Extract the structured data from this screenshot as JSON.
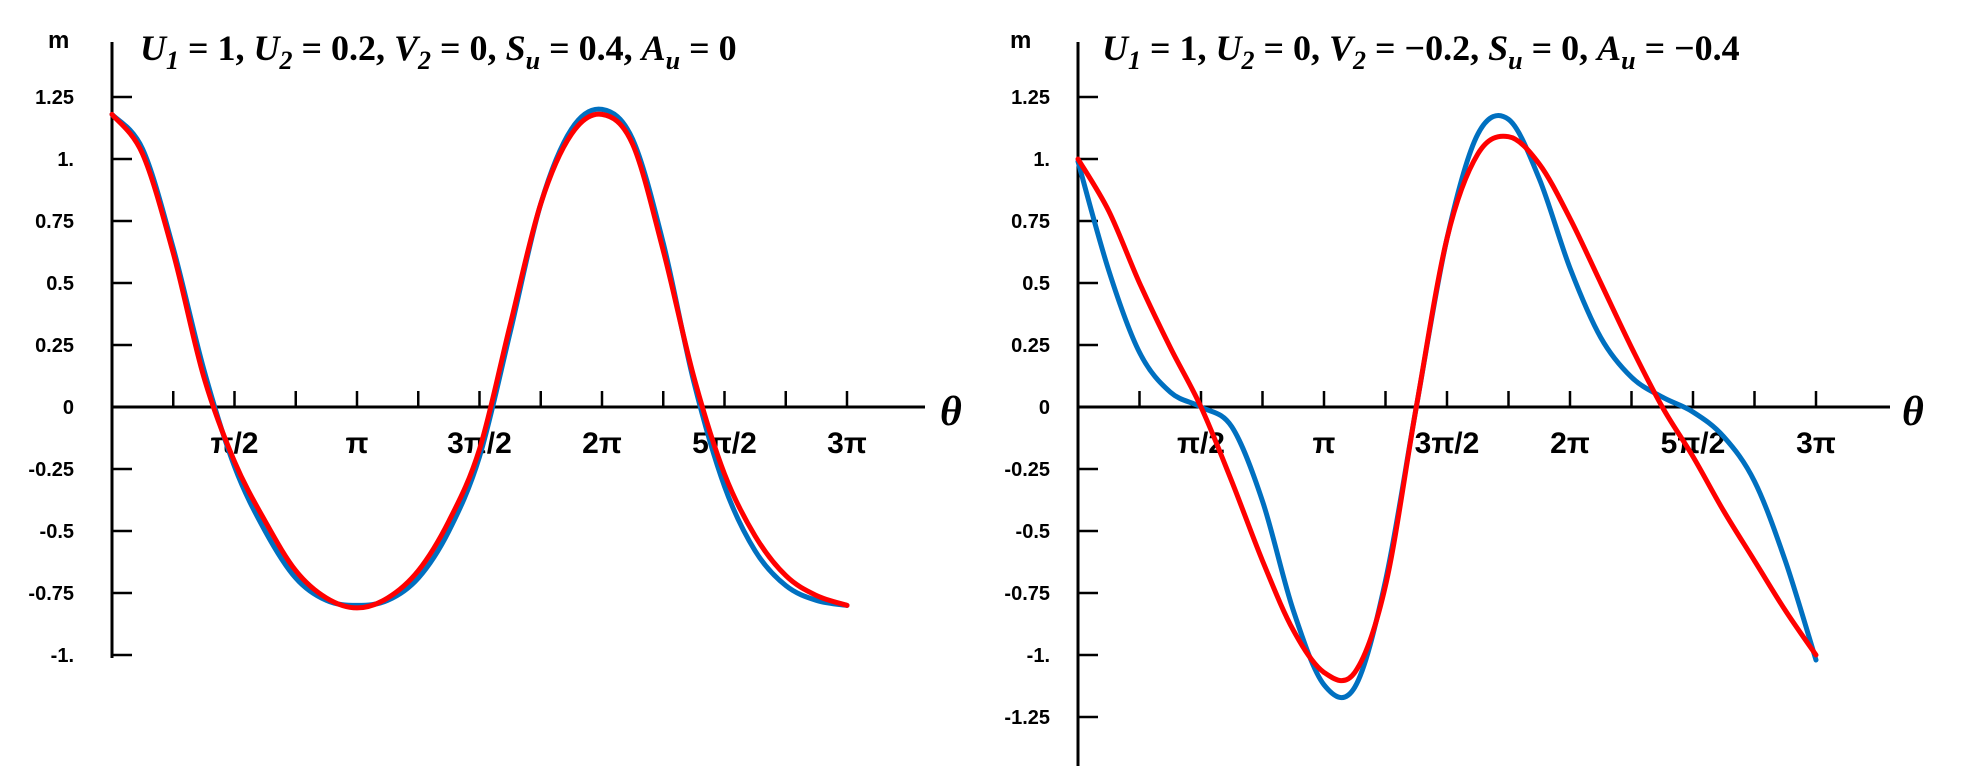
{
  "chart_data": [
    {
      "type": "line",
      "title": "U1 = 1,  U2 = 0.2,  V2 = 0,  Su = 0.4,  Au = 0",
      "title_parts": [
        {
          "base": "U",
          "sub": "1",
          "rest": " = 1,  "
        },
        {
          "base": "U",
          "sub": "2",
          "rest": " = 0.2,  "
        },
        {
          "base": "V",
          "sub": "2",
          "rest": " = 0,  "
        },
        {
          "base": "S",
          "sub": "u",
          "rest": " = 0.4,  "
        },
        {
          "base": "A",
          "sub": "u",
          "rest": " = 0"
        }
      ],
      "ylabel": "m",
      "xlabel": "θ",
      "xlim_pi": [
        0,
        3
      ],
      "ylim": [
        -1,
        1.25
      ],
      "y_ticks": [
        1.25,
        1.0,
        0.75,
        0.5,
        0.25,
        0,
        -0.25,
        -0.5,
        -0.75,
        -1.0
      ],
      "y_tick_labels": [
        "1.25",
        "1.",
        "0.75",
        "0.5",
        "0.25",
        "0",
        "-0.25",
        "-0.5",
        "-0.75",
        "-1."
      ],
      "x_ticks_pi": [
        0.25,
        0.5,
        0.75,
        1.0,
        1.25,
        1.5,
        1.75,
        2.0,
        2.25,
        2.5,
        2.75,
        3.0
      ],
      "x_label_ticks_pi": [
        0.5,
        1.0,
        1.5,
        2.0,
        2.5,
        3.0
      ],
      "x_tick_labels": [
        "π/2",
        "π",
        "3π/2",
        "2π",
        "5π/2",
        "3π"
      ],
      "series": [
        {
          "color": "#0070C0",
          "x_pi": [
            0,
            0.125,
            0.25,
            0.375,
            0.5,
            0.625,
            0.75,
            0.875,
            1.0,
            1.125,
            1.25,
            1.375,
            1.5,
            1.625,
            1.75,
            1.875,
            2.0,
            2.125,
            2.25,
            2.375,
            2.5,
            2.625,
            2.75,
            2.875,
            3.0
          ],
          "y": [
            1.18,
            1.04,
            0.64,
            0.15,
            -0.24,
            -0.5,
            -0.69,
            -0.78,
            -0.8,
            -0.78,
            -0.69,
            -0.5,
            -0.2,
            0.3,
            0.82,
            1.12,
            1.2,
            1.08,
            0.66,
            0.1,
            -0.32,
            -0.58,
            -0.72,
            -0.78,
            -0.8
          ]
        },
        {
          "color": "#FF0000",
          "x_pi": [
            0,
            0.125,
            0.25,
            0.375,
            0.5,
            0.625,
            0.75,
            0.875,
            1.0,
            1.125,
            1.25,
            1.375,
            1.5,
            1.625,
            1.75,
            1.875,
            2.0,
            2.125,
            2.25,
            2.375,
            2.5,
            2.625,
            2.75,
            2.875,
            3.0
          ],
          "y": [
            1.18,
            1.02,
            0.62,
            0.12,
            -0.22,
            -0.46,
            -0.66,
            -0.77,
            -0.81,
            -0.77,
            -0.66,
            -0.46,
            -0.17,
            0.33,
            0.82,
            1.1,
            1.18,
            1.06,
            0.63,
            0.12,
            -0.27,
            -0.52,
            -0.68,
            -0.76,
            -0.8
          ]
        }
      ]
    },
    {
      "type": "line",
      "title": "U1 = 1,  U2 = 0,  V2 = −0.2,  Su = 0,  Au = −0.4",
      "title_parts": [
        {
          "base": "U",
          "sub": "1",
          "rest": " = 1,  "
        },
        {
          "base": "U",
          "sub": "2",
          "rest": " = 0,  "
        },
        {
          "base": "V",
          "sub": "2",
          "rest": " = −0.2,  "
        },
        {
          "base": "S",
          "sub": "u",
          "rest": " = 0,  "
        },
        {
          "base": "A",
          "sub": "u",
          "rest": " = −0.4"
        }
      ],
      "ylabel": "m",
      "xlabel": "θ",
      "xlim_pi": [
        0,
        3
      ],
      "ylim": [
        -1.25,
        1.25
      ],
      "y_ticks": [
        1.25,
        1.0,
        0.75,
        0.5,
        0.25,
        0,
        -0.25,
        -0.5,
        -0.75,
        -1.0,
        -1.25
      ],
      "y_tick_labels": [
        "1.25",
        "1.",
        "0.75",
        "0.5",
        "0.25",
        "0",
        "-0.25",
        "-0.5",
        "-0.75",
        "-1.",
        "-1.25"
      ],
      "x_ticks_pi": [
        0.25,
        0.5,
        0.75,
        1.0,
        1.25,
        1.5,
        1.75,
        2.0,
        2.25,
        2.5,
        2.75,
        3.0
      ],
      "x_label_ticks_pi": [
        0.5,
        1.0,
        1.5,
        2.0,
        2.5,
        3.0
      ],
      "x_tick_labels": [
        "π/2",
        "π",
        "3π/2",
        "2π",
        "5π/2",
        "3π"
      ],
      "series": [
        {
          "color": "#0070C0",
          "x_pi": [
            0,
            0.125,
            0.25,
            0.375,
            0.5,
            0.625,
            0.75,
            0.875,
            1.0,
            1.125,
            1.25,
            1.375,
            1.5,
            1.625,
            1.75,
            1.875,
            2.0,
            2.125,
            2.25,
            2.375,
            2.5,
            2.625,
            2.75,
            2.875,
            3.0
          ],
          "y": [
            0.99,
            0.55,
            0.22,
            0.06,
            0.0,
            -0.08,
            -0.38,
            -0.82,
            -1.12,
            -1.13,
            -0.7,
            0.0,
            0.68,
            1.1,
            1.16,
            0.92,
            0.56,
            0.28,
            0.12,
            0.04,
            -0.02,
            -0.12,
            -0.3,
            -0.62,
            -1.02
          ]
        },
        {
          "color": "#FF0000",
          "x_pi": [
            0,
            0.125,
            0.25,
            0.375,
            0.5,
            0.625,
            0.75,
            0.875,
            1.0,
            1.125,
            1.25,
            1.375,
            1.5,
            1.625,
            1.75,
            1.875,
            2.0,
            2.125,
            2.25,
            2.375,
            2.5,
            2.625,
            2.75,
            2.875,
            3.0
          ],
          "y": [
            1.0,
            0.79,
            0.5,
            0.24,
            0.0,
            -0.3,
            -0.62,
            -0.9,
            -1.07,
            -1.07,
            -0.72,
            0.0,
            0.68,
            1.02,
            1.09,
            0.98,
            0.76,
            0.5,
            0.24,
            0.0,
            -0.2,
            -0.42,
            -0.62,
            -0.82,
            -1.0
          ]
        }
      ]
    }
  ]
}
